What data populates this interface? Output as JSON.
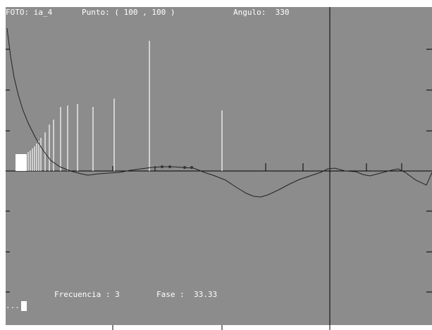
{
  "header": {
    "foto": "FOTO: ia_4",
    "punto": "Punto: ( 100 , 100 )",
    "angulo": "Angulo:  330"
  },
  "footer": {
    "frecuencia": "Frecuencia : 3",
    "fase": "Fase :  33.33"
  },
  "prompt": "..."
}
